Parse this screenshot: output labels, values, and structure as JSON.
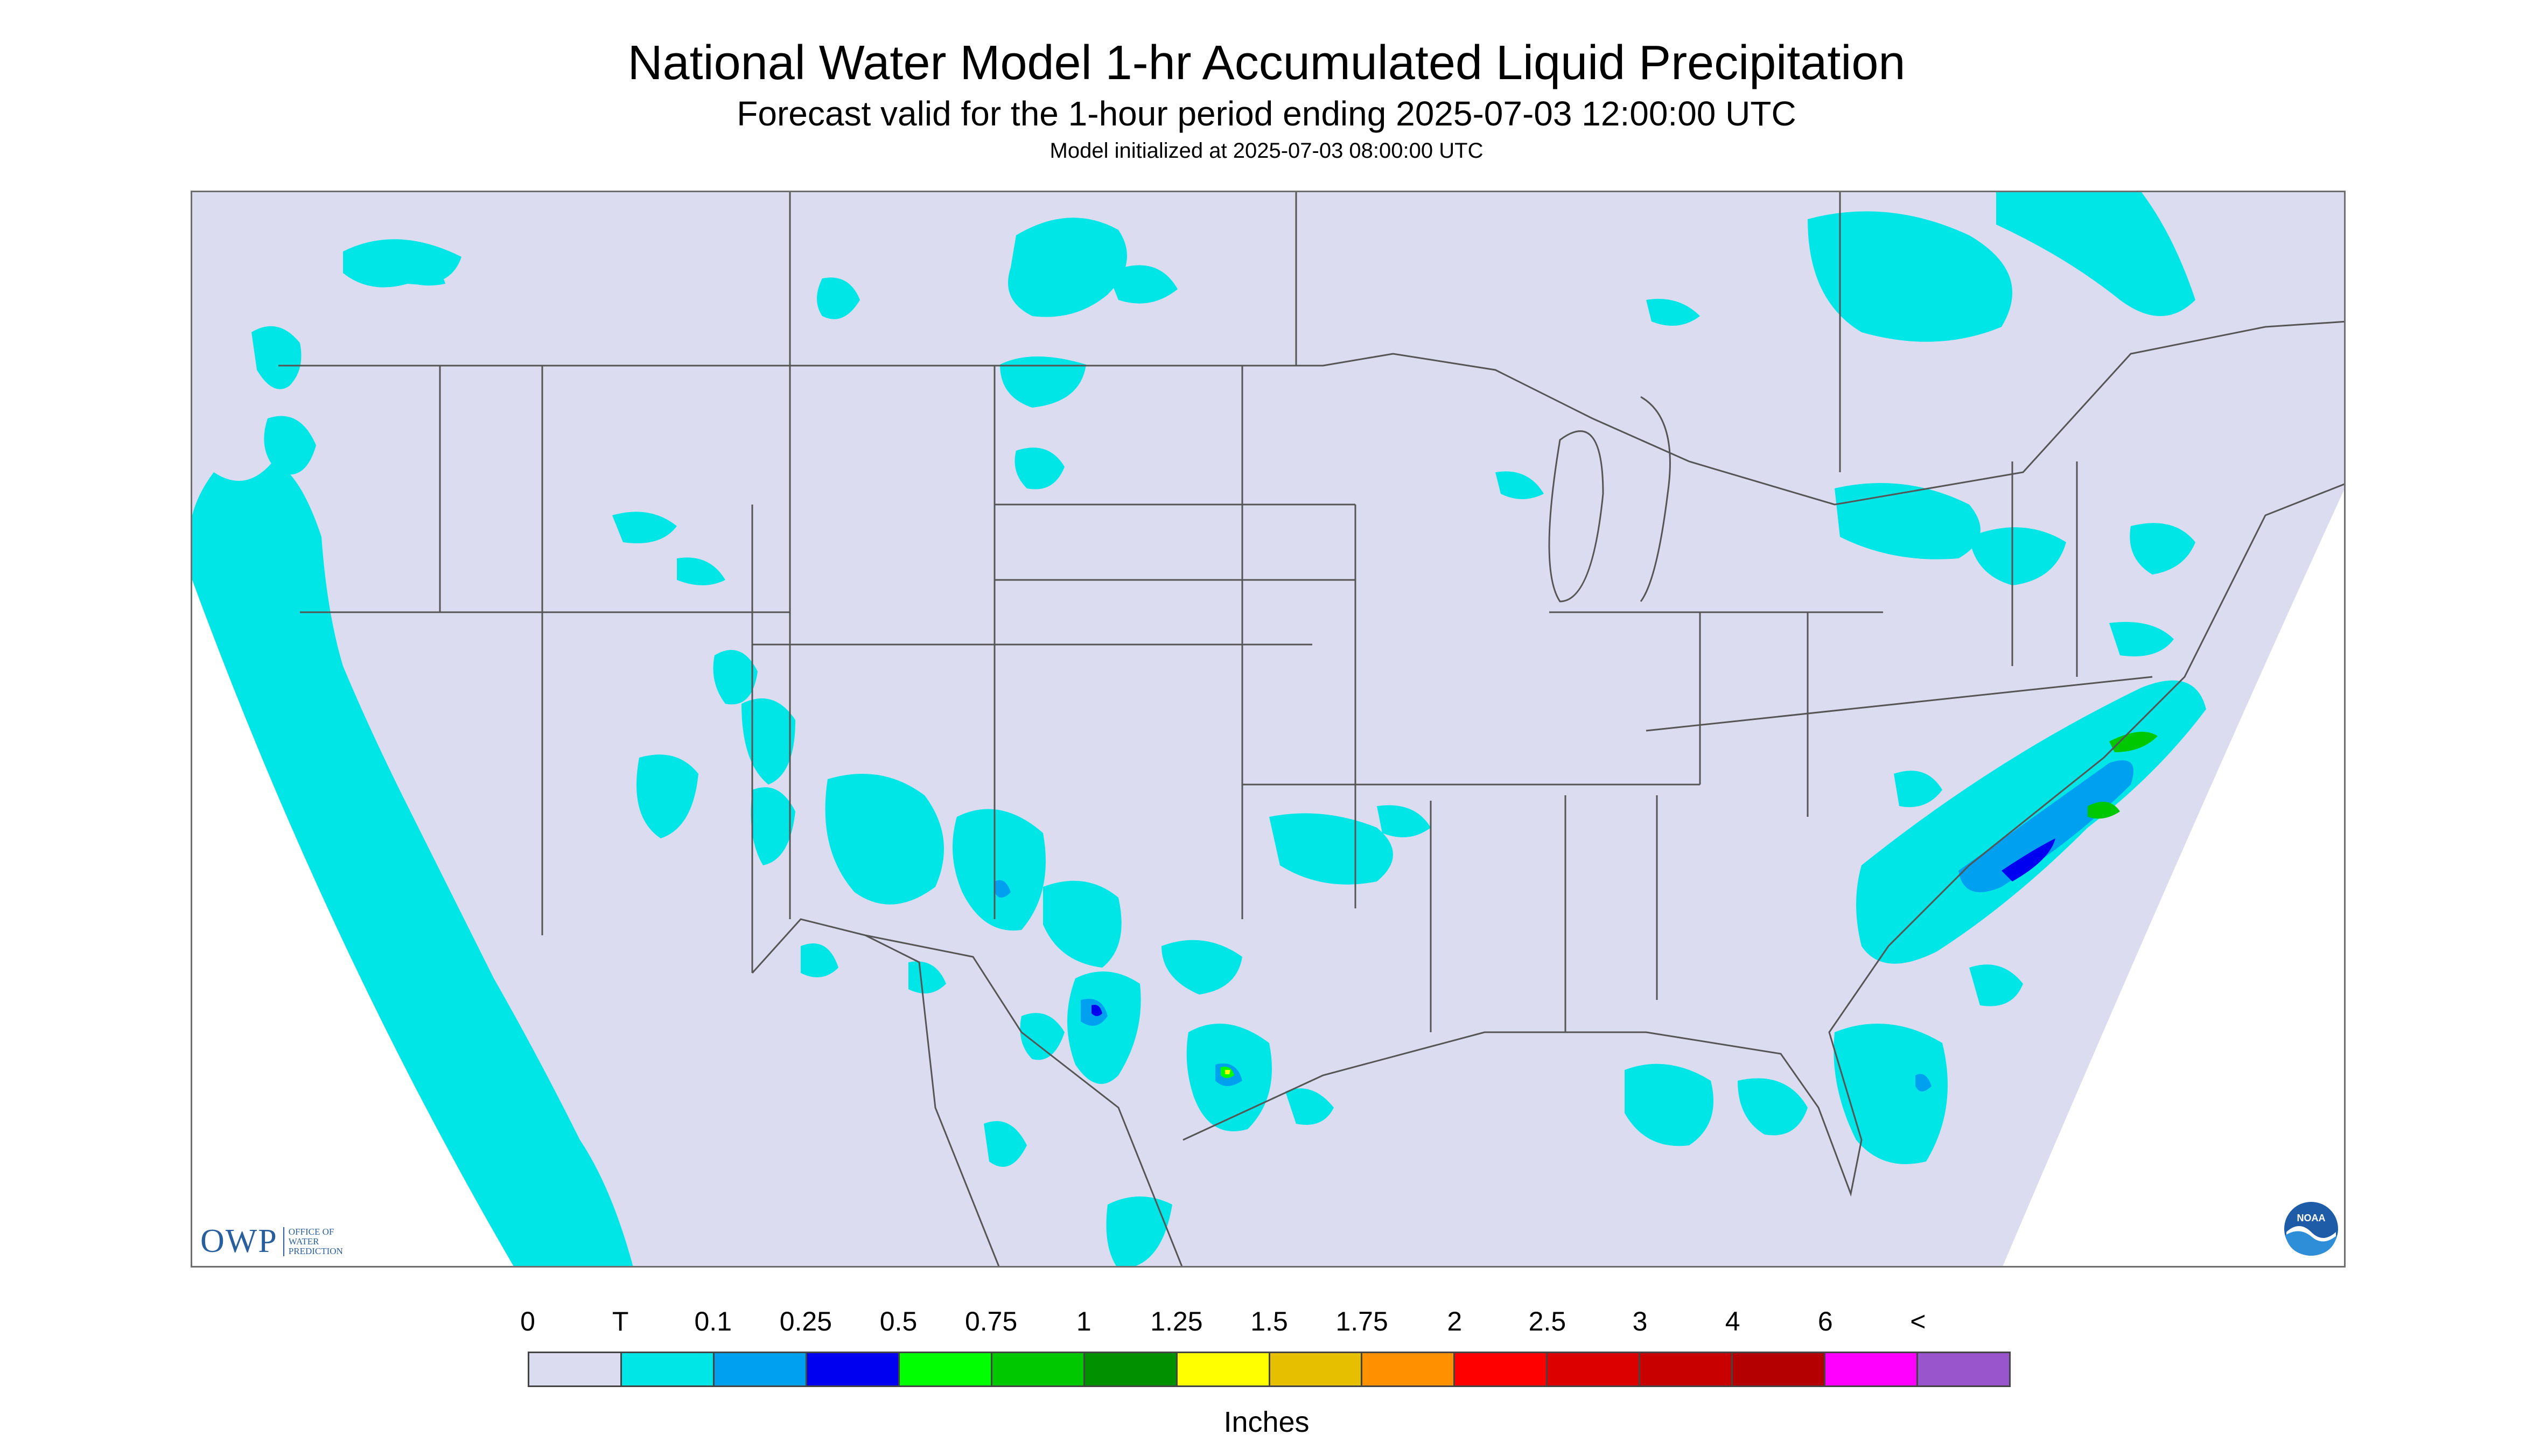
{
  "header": {
    "title": "National Water Model 1-hr Accumulated Liquid Precipitation",
    "subtitle": "Forecast valid for the 1-hour period ending 2025-07-03 12:00:00 UTC",
    "init": "Model initialized at 2025-07-03 08:00:00 UTC"
  },
  "logos": {
    "owp_letters": "OWP",
    "owp_lines": [
      "OFFICE OF",
      "WATER",
      "PREDICTION"
    ],
    "noaa_text": "NOAA"
  },
  "colors": {
    "background": "#dcdcf0",
    "outside_domain": "#ffffff",
    "trace": "#00e6e6",
    "borders": "#555555"
  },
  "legend": {
    "labels": [
      "0",
      "T",
      "0.1",
      "0.25",
      "0.5",
      "0.75",
      "1",
      "1.25",
      "1.5",
      "1.75",
      "2",
      "2.5",
      "3",
      "4",
      "6",
      "<"
    ],
    "colors": [
      "#dcdcf0",
      "#00e6e6",
      "#00a0f0",
      "#0000f0",
      "#00ff00",
      "#00c800",
      "#009000",
      "#ffff00",
      "#e6c000",
      "#ff9000",
      "#ff0000",
      "#dc0000",
      "#c80000",
      "#b40000",
      "#ff00ff",
      "#9955cc"
    ],
    "units": "Inches"
  }
}
